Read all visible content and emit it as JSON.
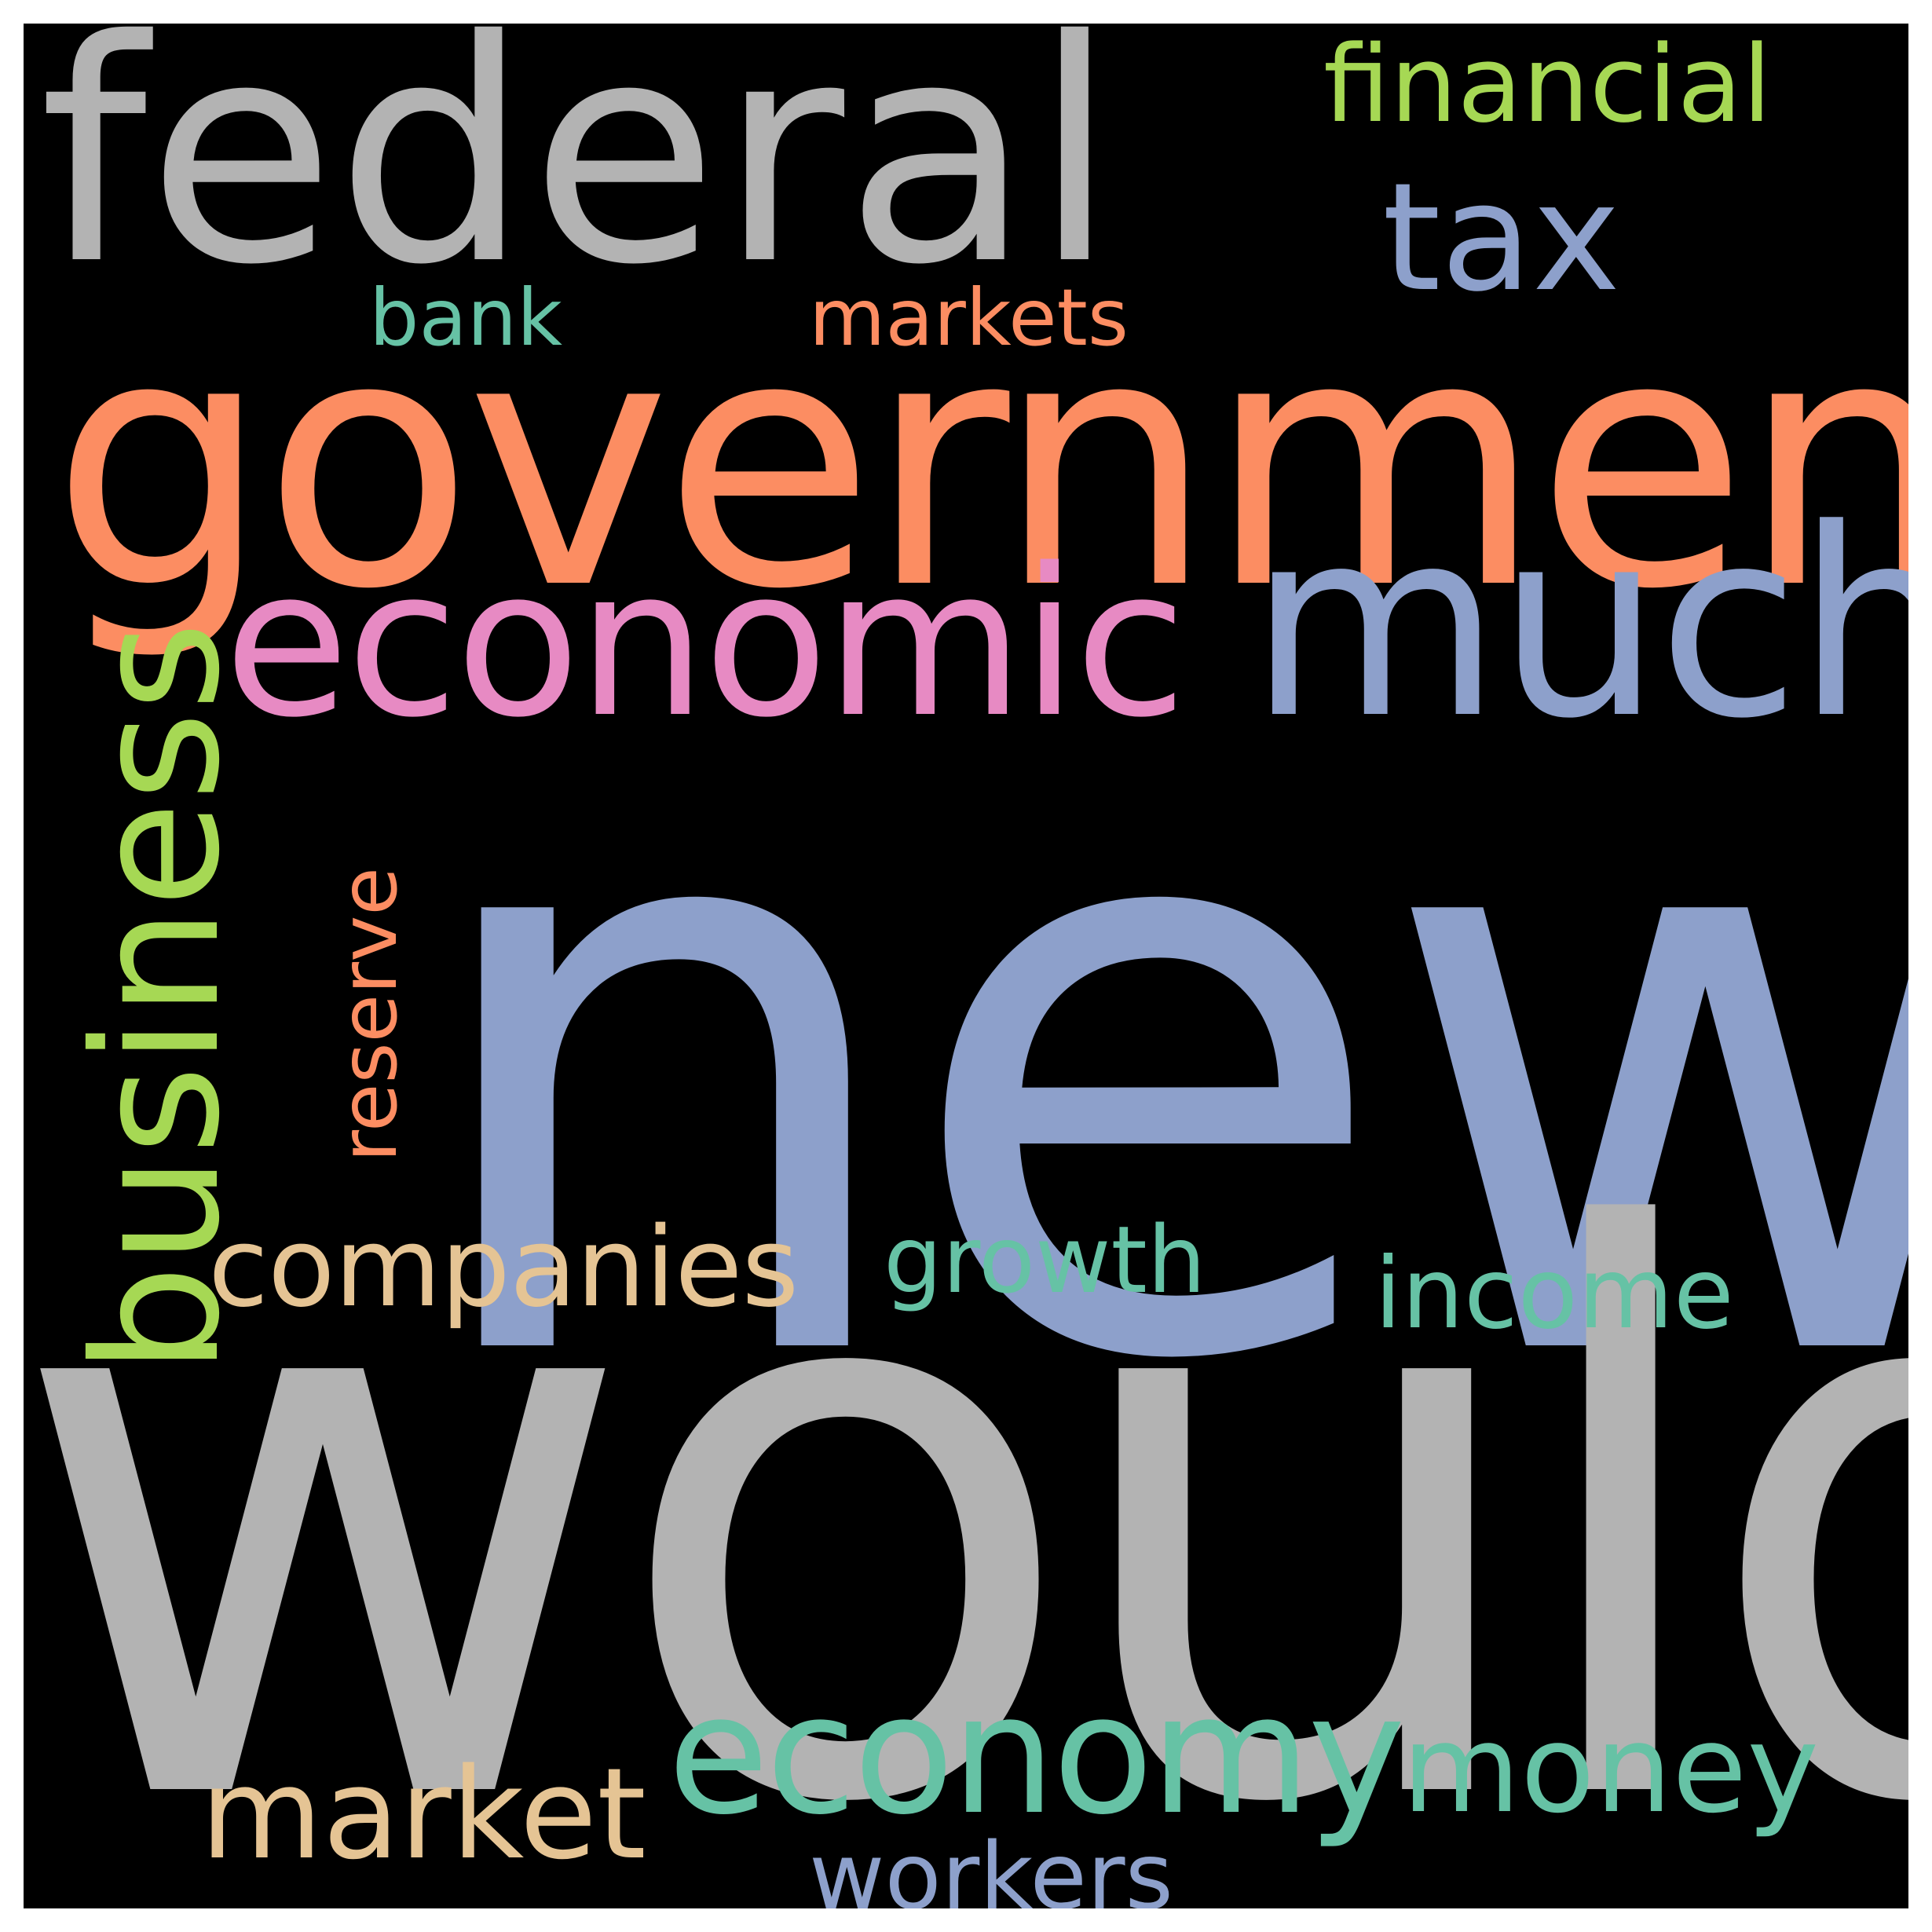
{
  "background": "#000000",
  "words": [
    {
      "text": "new",
      "color": "#8da0cb"
    },
    {
      "text": "would",
      "color": "#b3b3b3"
    },
    {
      "text": "government",
      "color": "#fc8d62"
    },
    {
      "text": "federal",
      "color": "#b3b3b3"
    },
    {
      "text": "much",
      "color": "#8da0cb"
    },
    {
      "text": "economic",
      "color": "#e78ac3"
    },
    {
      "text": "business",
      "color": "#a6d854"
    },
    {
      "text": "economy",
      "color": "#66c2a5"
    },
    {
      "text": "companies",
      "color": "#e5c494"
    },
    {
      "text": "tax",
      "color": "#8da0cb"
    },
    {
      "text": "financial",
      "color": "#a6d854"
    },
    {
      "text": "market",
      "color": "#e5c494"
    },
    {
      "text": "money",
      "color": "#66c2a5"
    },
    {
      "text": "income",
      "color": "#66c2a5"
    },
    {
      "text": "growth",
      "color": "#66c2a5"
    },
    {
      "text": "workers",
      "color": "#8da0cb"
    },
    {
      "text": "reserve",
      "color": "#fc8d62"
    },
    {
      "text": "markets",
      "color": "#fc8d62"
    },
    {
      "text": "bank",
      "color": "#66c2a5"
    }
  ]
}
